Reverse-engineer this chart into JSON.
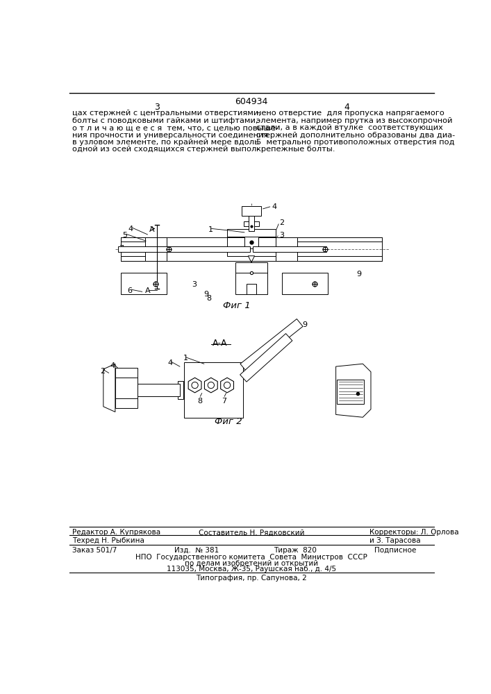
{
  "patent_number": "604934",
  "page_left": "3",
  "page_right": "4",
  "background_color": "#ffffff",
  "text_color": "#000000",
  "text_left_col": [
    "цах стержней с центральными отверстиями,",
    "болты с поводковыми гайками и штифтами,",
    "о т л и ч а ю щ е е с я  тем, что, с целью повыше-",
    "ния прочности и универсальности соединения",
    "в узловом элементе, по крайней мере вдоль",
    "одной из осей сходящихся стержней выпол-"
  ],
  "text_right_col": [
    "нено отверстие  для пропуска напрягаемого",
    "элемента, например прутка из высокопрочной",
    "стали, а в каждой втулке  соответствующих",
    "стержней дополнительно образованы два диа-",
    "5  метрально противоположных отверстия под",
    "крепежные болты."
  ],
  "fig1_label": "Фиг 1",
  "fig2_label": "Фиг 2",
  "section_label": "А-А",
  "editor_line": "Редактор А. Купрякова",
  "compiler_line": "Составитель Н. Рядковский",
  "techred_line": "Техред Н. Рыбкина",
  "corrector_line": "Корректоры: Л. Орлова",
  "corrector_line2": "и З. Тарасова",
  "order_line": "Заказ 501/7",
  "edition_line": "Изд.  № 381",
  "circulation_line": "Тираж  820",
  "signed_line": "Подписное",
  "npo_line": "НПО  Государственного комитета  Совета  Министров  СССР",
  "affairs_line": "по делам изобретений и открытий",
  "address_line": "113035, Москва, Ж-35, Раушская наб., д. 4/5",
  "typography_line": "Типография, пр. Сапунова, 2"
}
